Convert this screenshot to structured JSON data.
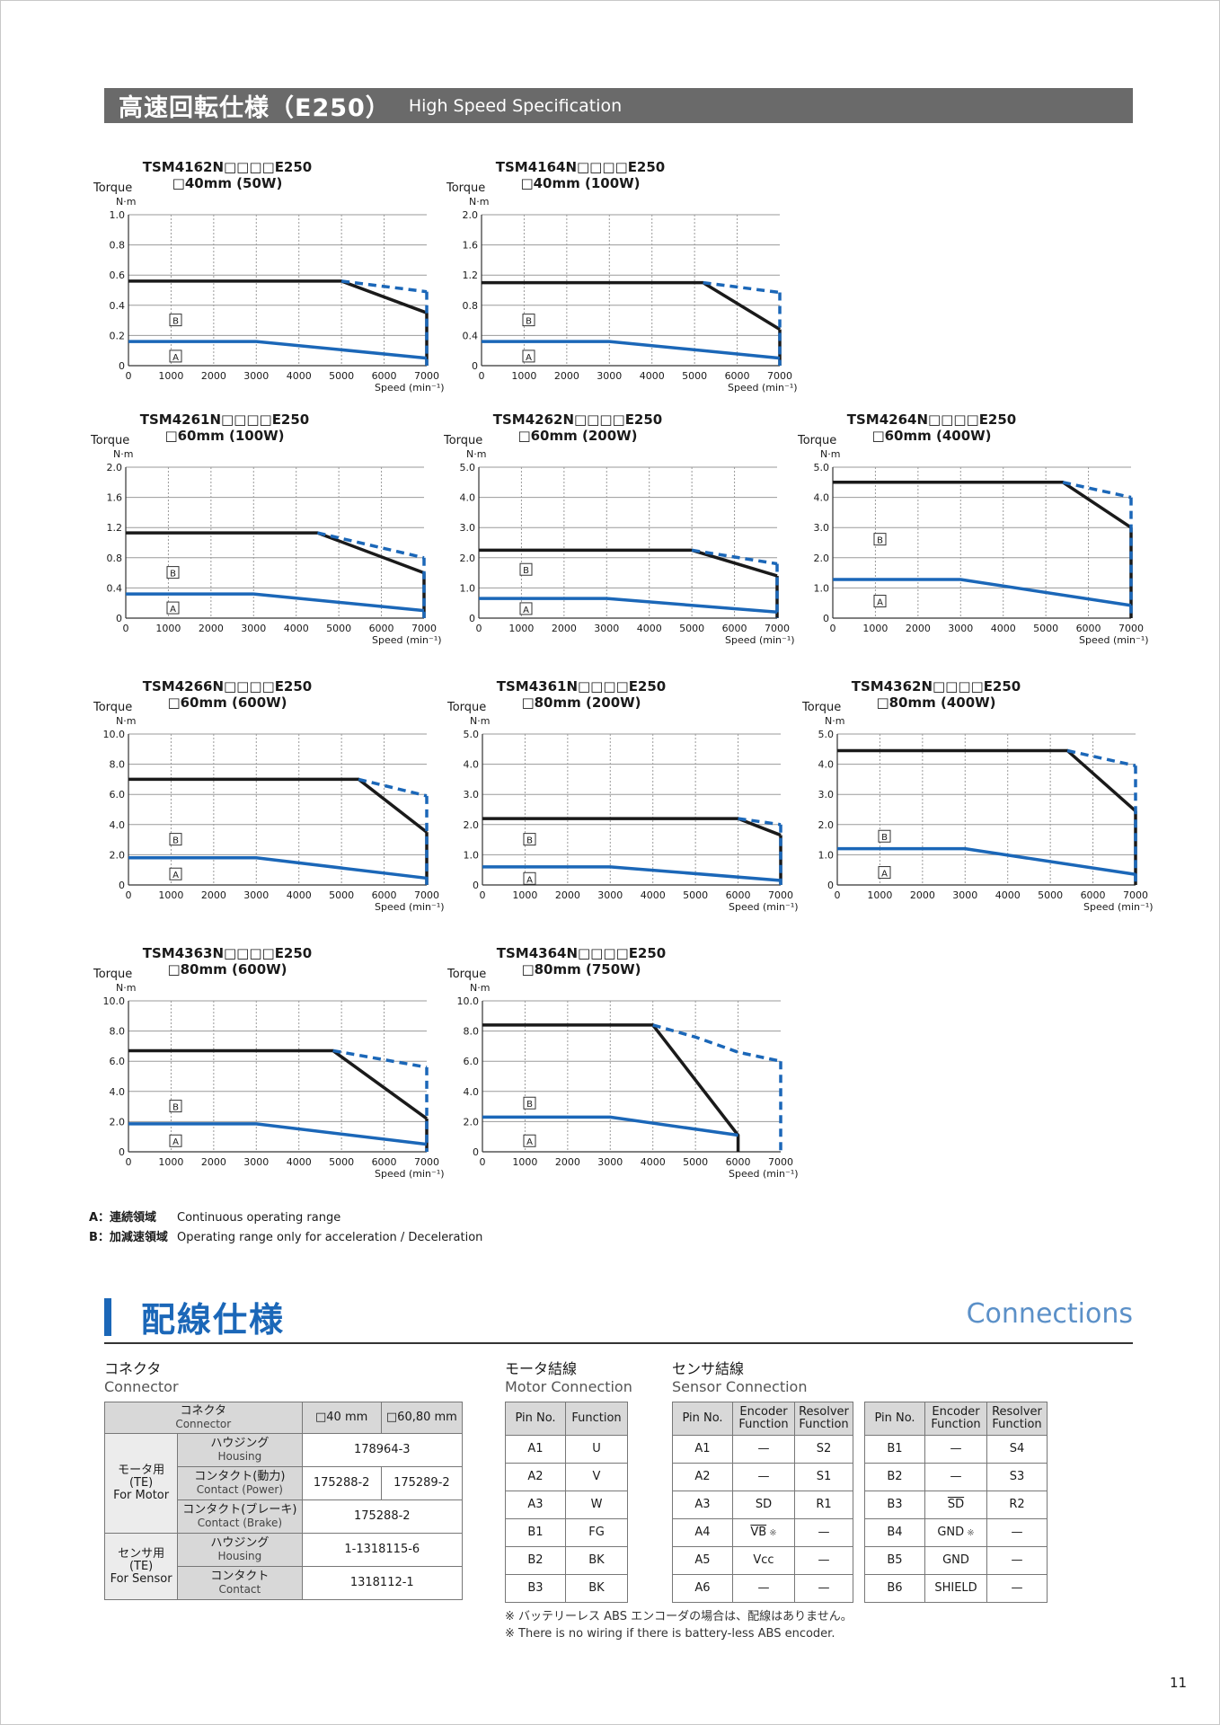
{
  "header": {
    "title_jp": "高速回転仕様（E250）",
    "title_en": "High Speed Specification"
  },
  "axis_labels": {
    "torque": "Torque",
    "unit": "N·m",
    "speed": "Speed (min⁻¹)"
  },
  "region_labels": {
    "a": "A",
    "b": "B"
  },
  "colors": {
    "header_bg": "#6a6a6a",
    "accent": "#1b67b8",
    "peak_line": "#1a1a1a",
    "continuous_line": "#1b67b8",
    "table_header_bg": "#d8d8d8"
  },
  "chart_data": [
    {
      "type": "line",
      "model": "TSM4162N□□□□E250",
      "size": "□40mm (50W)",
      "x_ticks": [
        0,
        1000,
        2000,
        3000,
        4000,
        5000,
        6000,
        7000
      ],
      "xlim": [
        0,
        7000
      ],
      "ylim": [
        0,
        1.0
      ],
      "y_ticks": [
        "0",
        "0.2",
        "0.4",
        "0.6",
        "0.8",
        "1.0"
      ],
      "series": [
        {
          "region": "B",
          "x": [
            0,
            5000,
            7000
          ],
          "y": [
            0.56,
            0.56,
            0.35
          ]
        },
        {
          "region": "B-ext",
          "x": [
            5000,
            7000
          ],
          "y": [
            0.56,
            0.49
          ]
        },
        {
          "region": "A",
          "x": [
            0,
            3000,
            7000
          ],
          "y": [
            0.16,
            0.16,
            0.05
          ]
        }
      ],
      "label_b_y": 0.3,
      "label_a_y": 0.06
    },
    {
      "type": "line",
      "model": "TSM4164N□□□□E250",
      "size": "□40mm (100W)",
      "x_ticks": [
        0,
        1000,
        2000,
        3000,
        4000,
        5000,
        6000,
        7000
      ],
      "xlim": [
        0,
        7000
      ],
      "ylim": [
        0,
        2.0
      ],
      "y_ticks": [
        "0",
        "0.4",
        "0.8",
        "1.2",
        "1.6",
        "2.0"
      ],
      "series": [
        {
          "region": "B",
          "x": [
            0,
            5200,
            7000
          ],
          "y": [
            1.1,
            1.1,
            0.48
          ]
        },
        {
          "region": "B-ext",
          "x": [
            5200,
            7000
          ],
          "y": [
            1.1,
            0.97
          ]
        },
        {
          "region": "A",
          "x": [
            0,
            3000,
            7000
          ],
          "y": [
            0.32,
            0.32,
            0.1
          ]
        }
      ],
      "label_b_y": 0.6,
      "label_a_y": 0.12
    },
    {
      "type": "line",
      "model": "TSM4261N□□□□E250",
      "size": "□60mm (100W)",
      "x_ticks": [
        0,
        1000,
        2000,
        3000,
        4000,
        5000,
        6000,
        7000
      ],
      "xlim": [
        0,
        7000
      ],
      "ylim": [
        0,
        2.0
      ],
      "y_ticks": [
        "0",
        "0.4",
        "0.8",
        "1.2",
        "1.6",
        "2.0"
      ],
      "series": [
        {
          "region": "B",
          "x": [
            0,
            4500,
            7000
          ],
          "y": [
            1.13,
            1.13,
            0.6
          ]
        },
        {
          "region": "B-ext",
          "x": [
            4500,
            7000
          ],
          "y": [
            1.13,
            0.8
          ]
        },
        {
          "region": "A",
          "x": [
            0,
            3000,
            7000
          ],
          "y": [
            0.32,
            0.32,
            0.1
          ]
        }
      ],
      "label_b_y": 0.6,
      "label_a_y": 0.13
    },
    {
      "type": "line",
      "model": "TSM4262N□□□□E250",
      "size": "□60mm (200W)",
      "x_ticks": [
        0,
        1000,
        2000,
        3000,
        4000,
        5000,
        6000,
        7000
      ],
      "xlim": [
        0,
        7000
      ],
      "ylim": [
        0,
        5.0
      ],
      "y_ticks": [
        "0",
        "1.0",
        "2.0",
        "3.0",
        "4.0",
        "5.0"
      ],
      "series": [
        {
          "region": "B",
          "x": [
            0,
            5000,
            7000
          ],
          "y": [
            2.25,
            2.25,
            1.4
          ]
        },
        {
          "region": "B-ext",
          "x": [
            5000,
            7000
          ],
          "y": [
            2.25,
            1.8
          ]
        },
        {
          "region": "A",
          "x": [
            0,
            3000,
            7000
          ],
          "y": [
            0.65,
            0.65,
            0.2
          ]
        }
      ],
      "label_b_y": 1.6,
      "label_a_y": 0.3
    },
    {
      "type": "line",
      "model": "TSM4264N□□□□E250",
      "size": "□60mm (400W)",
      "x_ticks": [
        0,
        1000,
        2000,
        3000,
        4000,
        5000,
        6000,
        7000
      ],
      "xlim": [
        0,
        7000
      ],
      "ylim": [
        0,
        5.0
      ],
      "y_ticks": [
        "0",
        "1.0",
        "2.0",
        "3.0",
        "4.0",
        "5.0"
      ],
      "series": [
        {
          "region": "B",
          "x": [
            0,
            5400,
            7000
          ],
          "y": [
            4.5,
            4.5,
            3.0
          ]
        },
        {
          "region": "B-ext",
          "x": [
            5400,
            7000
          ],
          "y": [
            4.5,
            4.0
          ]
        },
        {
          "region": "A",
          "x": [
            0,
            3000,
            7000
          ],
          "y": [
            1.28,
            1.28,
            0.42
          ]
        }
      ],
      "label_b_y": 2.6,
      "label_a_y": 0.55
    },
    {
      "type": "line",
      "model": "TSM4266N□□□□E250",
      "size": "□60mm (600W)",
      "x_ticks": [
        0,
        1000,
        2000,
        3000,
        4000,
        5000,
        6000,
        7000
      ],
      "xlim": [
        0,
        7000
      ],
      "ylim": [
        0,
        10.0
      ],
      "y_ticks": [
        "0",
        "2.0",
        "4.0",
        "6.0",
        "8.0",
        "10.0"
      ],
      "series": [
        {
          "region": "B",
          "x": [
            0,
            5400,
            7000
          ],
          "y": [
            7.0,
            7.0,
            3.5
          ]
        },
        {
          "region": "B-ext",
          "x": [
            5400,
            7000
          ],
          "y": [
            7.0,
            5.9
          ]
        },
        {
          "region": "A",
          "x": [
            0,
            3000,
            7000
          ],
          "y": [
            1.8,
            1.8,
            0.45
          ]
        }
      ],
      "label_b_y": 3.0,
      "label_a_y": 0.7
    },
    {
      "type": "line",
      "model": "TSM4361N□□□□E250",
      "size": "□80mm (200W)",
      "x_ticks": [
        0,
        1000,
        2000,
        3000,
        4000,
        5000,
        6000,
        7000
      ],
      "xlim": [
        0,
        7000
      ],
      "ylim": [
        0,
        5.0
      ],
      "y_ticks": [
        "0",
        "1.0",
        "2.0",
        "3.0",
        "4.0",
        "5.0"
      ],
      "series": [
        {
          "region": "B",
          "x": [
            0,
            6000,
            7000
          ],
          "y": [
            2.2,
            2.2,
            1.65
          ]
        },
        {
          "region": "B-ext",
          "x": [
            6000,
            7000
          ],
          "y": [
            2.2,
            2.0
          ]
        },
        {
          "region": "A",
          "x": [
            0,
            3000,
            7000
          ],
          "y": [
            0.6,
            0.6,
            0.15
          ]
        }
      ],
      "label_b_y": 1.5,
      "label_a_y": 0.2
    },
    {
      "type": "line",
      "model": "TSM4362N□□□□E250",
      "size": "□80mm (400W)",
      "x_ticks": [
        0,
        1000,
        2000,
        3000,
        4000,
        5000,
        6000,
        7000
      ],
      "xlim": [
        0,
        7000
      ],
      "ylim": [
        0,
        5.0
      ],
      "y_ticks": [
        "0",
        "1.0",
        "2.0",
        "3.0",
        "4.0",
        "5.0"
      ],
      "series": [
        {
          "region": "B",
          "x": [
            0,
            5400,
            7000
          ],
          "y": [
            4.45,
            4.45,
            2.45
          ]
        },
        {
          "region": "B-ext",
          "x": [
            5400,
            7000
          ],
          "y": [
            4.45,
            3.95
          ]
        },
        {
          "region": "A",
          "x": [
            0,
            3000,
            7000
          ],
          "y": [
            1.2,
            1.2,
            0.35
          ]
        }
      ],
      "label_b_y": 1.6,
      "label_a_y": 0.4
    },
    {
      "type": "line",
      "model": "TSM4363N□□□□E250",
      "size": "□80mm (600W)",
      "x_ticks": [
        0,
        1000,
        2000,
        3000,
        4000,
        5000,
        6000,
        7000
      ],
      "xlim": [
        0,
        7000
      ],
      "ylim": [
        0,
        10.0
      ],
      "y_ticks": [
        "0",
        "2.0",
        "4.0",
        "6.0",
        "8.0",
        "10.0"
      ],
      "series": [
        {
          "region": "B",
          "x": [
            0,
            4800,
            7000
          ],
          "y": [
            6.7,
            6.7,
            2.2
          ]
        },
        {
          "region": "B-ext",
          "x": [
            4800,
            7000
          ],
          "y": [
            6.7,
            5.6
          ]
        },
        {
          "region": "A",
          "x": [
            0,
            3000,
            7000
          ],
          "y": [
            1.85,
            1.85,
            0.5
          ]
        }
      ],
      "label_b_y": 3.0,
      "label_a_y": 0.7
    },
    {
      "type": "line",
      "model": "TSM4364N□□□□E250",
      "size": "□80mm (750W)",
      "x_ticks": [
        0,
        1000,
        2000,
        3000,
        4000,
        5000,
        6000,
        7000
      ],
      "xlim": [
        0,
        7000
      ],
      "ylim": [
        0,
        10.0
      ],
      "y_ticks": [
        "0",
        "2.0",
        "4.0",
        "6.0",
        "8.0",
        "10.0"
      ],
      "series": [
        {
          "region": "B",
          "x": [
            0,
            4000,
            6000,
            6000
          ],
          "y": [
            8.4,
            8.4,
            1.1,
            0
          ]
        },
        {
          "region": "B-ext",
          "x": [
            4000,
            5000,
            6000,
            7000
          ],
          "y": [
            8.4,
            7.6,
            6.6,
            6.0
          ]
        },
        {
          "region": "A",
          "x": [
            0,
            3000,
            6000
          ],
          "y": [
            2.3,
            2.3,
            1.1
          ]
        }
      ],
      "label_b_y": 3.2,
      "label_a_y": 0.7
    }
  ],
  "legend": [
    {
      "key": "A：連続領域",
      "text": "Continuous operating range"
    },
    {
      "key": "B：加減速領域",
      "text": "Operating range only for acceleration / Deceleration"
    }
  ],
  "connections": {
    "title_jp": "配線仕様",
    "title_en": "Connections",
    "connector": {
      "caption_jp": "コネクタ",
      "caption_en": "Connector",
      "head_jp": "コネクタ",
      "head_en": "Connector",
      "col_40": "□40 mm",
      "col_6080": "□60,80 mm",
      "motor_group": [
        "モータ用",
        "(TE)",
        "For Motor"
      ],
      "sensor_group": [
        "センサ用",
        "(TE)",
        "For Sensor"
      ],
      "rows": [
        {
          "jp": "ハウジング",
          "en": "Housing",
          "v": "178964-3"
        },
        {
          "jp": "コンタクト(動力)",
          "en": "Contact (Power)",
          "v1": "175288-2",
          "v2": "175289-2"
        },
        {
          "jp": "コンタクト(ブレーキ)",
          "en": "Contact (Brake)",
          "v": "175288-2"
        },
        {
          "jp": "ハウジング",
          "en": "Housing",
          "v": "1-1318115-6"
        },
        {
          "jp": "コンタクト",
          "en": "Contact",
          "v": "1318112-1"
        }
      ]
    },
    "motor": {
      "caption_jp": "モータ結線",
      "caption_en": "Motor Connection",
      "headers": [
        "Pin No.",
        "Function"
      ],
      "rows": [
        [
          "A1",
          "U"
        ],
        [
          "A2",
          "V"
        ],
        [
          "A3",
          "W"
        ],
        [
          "B1",
          "FG"
        ],
        [
          "B2",
          "BK"
        ],
        [
          "B3",
          "BK"
        ]
      ]
    },
    "sensor": {
      "caption_jp": "センサ結線",
      "caption_en": "Sensor Connection",
      "h_pin": "Pin No.",
      "h_enc": [
        "Encoder",
        "Function"
      ],
      "h_res": [
        "Resolver",
        "Function"
      ],
      "left": [
        [
          "A1",
          "—",
          "S2"
        ],
        [
          "A2",
          "—",
          "S1"
        ],
        [
          "A3",
          "SD",
          "R1"
        ],
        [
          "A4",
          "VB ※",
          "—"
        ],
        [
          "A5",
          "Vcc",
          "—"
        ],
        [
          "A6",
          "—",
          "—"
        ]
      ],
      "right": [
        [
          "B1",
          "—",
          "S4"
        ],
        [
          "B2",
          "—",
          "S3"
        ],
        [
          "B3",
          "SD",
          "R2"
        ],
        [
          "B4",
          "GND ※",
          "—"
        ],
        [
          "B5",
          "GND",
          "—"
        ],
        [
          "B6",
          "SHIELD",
          "—"
        ]
      ]
    },
    "notes": [
      "※ バッテリーレス ABS エンコーダの場合は、配線はありません。",
      "※ There is no wiring if there is battery-less ABS encoder."
    ]
  },
  "page_number": "11"
}
